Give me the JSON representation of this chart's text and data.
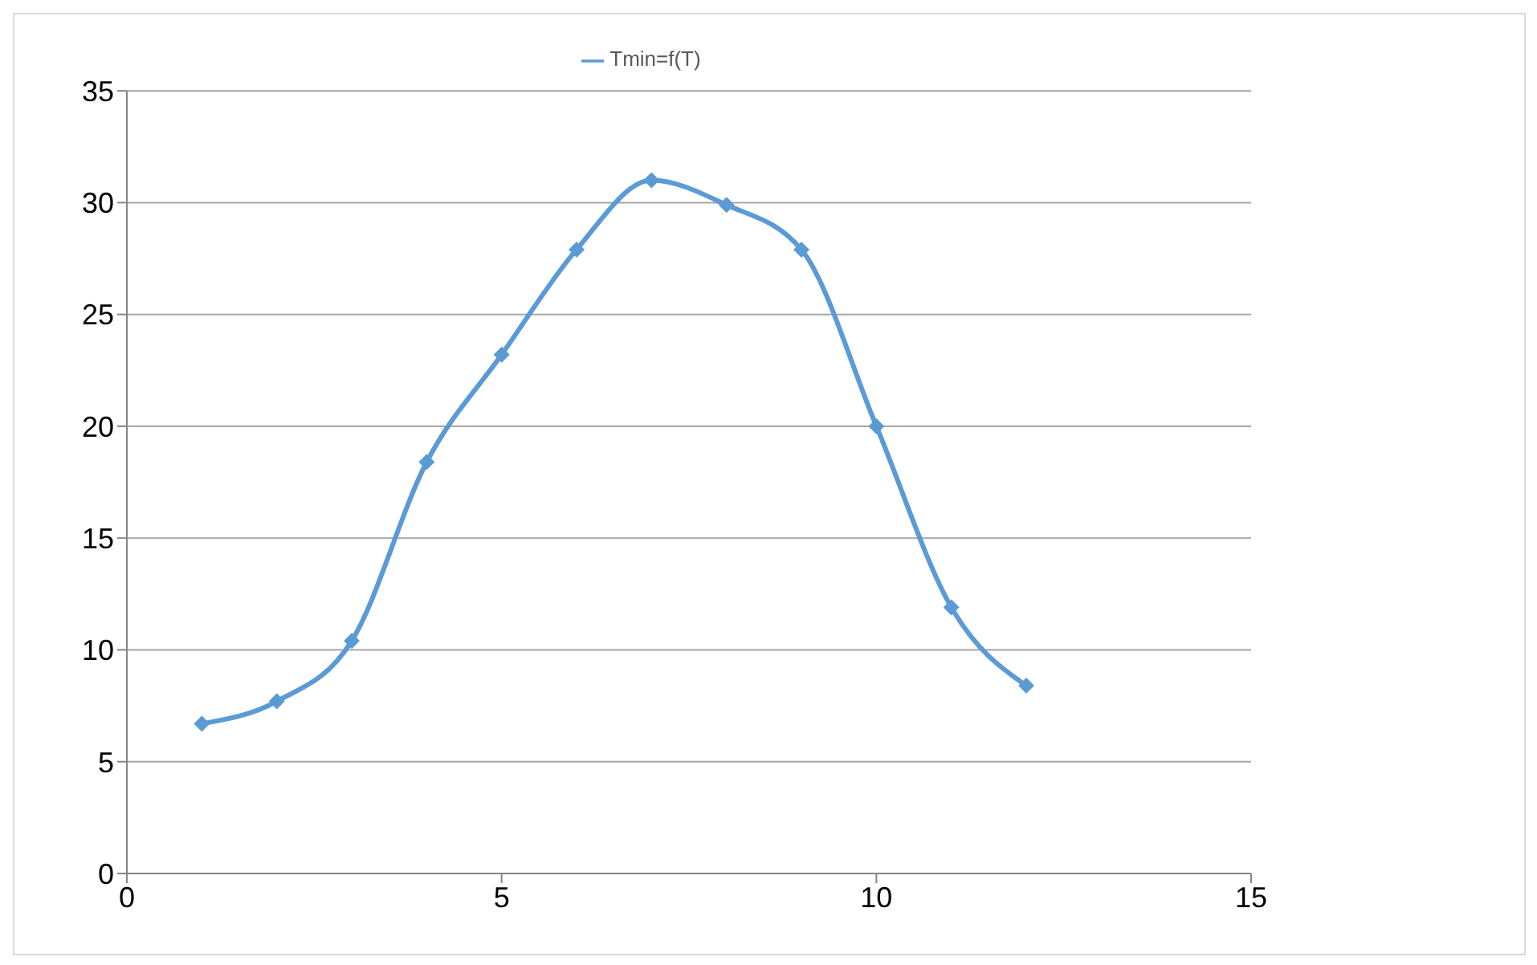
{
  "chart_data": {
    "type": "line",
    "x": [
      1,
      2,
      3,
      4,
      5,
      6,
      7,
      8,
      9,
      10,
      11,
      12
    ],
    "series": [
      {
        "name": "Tmin=f(T)",
        "color": "#5b9bd5",
        "values": [
          6.7,
          7.7,
          10.4,
          18.4,
          23.2,
          27.9,
          31.0,
          29.9,
          27.9,
          20.0,
          11.9,
          8.4
        ]
      }
    ],
    "xlim": [
      0,
      15
    ],
    "xticks": [
      0,
      5,
      10,
      15
    ],
    "ylim": [
      0,
      35
    ],
    "yticks": [
      0,
      5,
      10,
      15,
      20,
      25,
      30,
      35
    ],
    "grid": "y",
    "legend": "top",
    "marker": "diamond",
    "line_style": "solid"
  }
}
